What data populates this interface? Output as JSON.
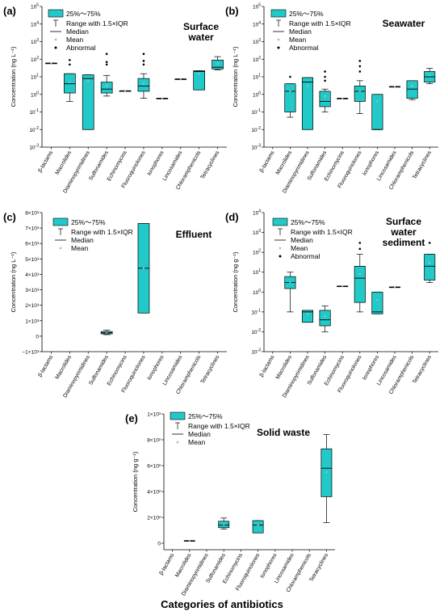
{
  "colors": {
    "box": "#00CED1",
    "box_fill": "#22C9C9",
    "stroke": "#000000",
    "mean": "#BBBBBB"
  },
  "legend": {
    "box": "25%～75%",
    "range": "Range with 1.5×IQR",
    "median": "Median",
    "mean": "Mean",
    "abnormal": "Abnormal"
  },
  "x_caption": "Categories of antibiotics",
  "chart_data": [
    {
      "id": "a",
      "label": "(a)",
      "title": [
        "Surface",
        "water"
      ],
      "type": "box",
      "scale": "log",
      "ylabel": "Concentration (ng L⁻¹)",
      "ylim_exp": [
        -3,
        5
      ],
      "show_abnormal": true,
      "categories": [
        "β-lactams",
        "Macrolides",
        "Diaminopyrimidines",
        "Sulfonamides",
        "Echinomycins",
        "Fluoroquinolones",
        "Ionophores",
        "Lincosamides",
        "Chloramphenicols",
        "Tetracyclines"
      ],
      "boxes": [
        {
          "min": 60,
          "q1": 60,
          "median": 60,
          "q3": 60,
          "max": 60,
          "mean": 60,
          "outliers": []
        },
        {
          "min": 0.4,
          "q1": 1.2,
          "median": 4,
          "q3": 15,
          "max": 15,
          "mean": 5,
          "outliers": [
            50,
            90
          ]
        },
        {
          "min": 0.01,
          "q1": 0.01,
          "median": 8,
          "q3": 13,
          "max": 13,
          "mean": 6,
          "outliers": []
        },
        {
          "min": 0.8,
          "q1": 1.2,
          "median": 2,
          "q3": 5,
          "max": 12,
          "mean": 3,
          "outliers": [
            50,
            70,
            200
          ]
        },
        {
          "min": 1.6,
          "q1": 1.6,
          "median": 1.6,
          "q3": 1.6,
          "max": 1.6,
          "mean": 1.6,
          "outliers": []
        },
        {
          "min": 0.6,
          "q1": 1.5,
          "median": 3,
          "q3": 8,
          "max": 15,
          "mean": 4,
          "outliers": [
            50,
            80,
            200
          ]
        },
        {
          "min": 0.6,
          "q1": 0.6,
          "median": 0.6,
          "q3": 0.6,
          "max": 0.6,
          "mean": 0.6,
          "outliers": []
        },
        {
          "min": 7.5,
          "q1": 7.5,
          "median": 7.5,
          "q3": 7.5,
          "max": 7.5,
          "mean": 7.5,
          "outliers": []
        },
        {
          "min": 1.8,
          "q1": 1.8,
          "median": 20,
          "q3": 22,
          "max": 22,
          "mean": 15,
          "outliers": []
        },
        {
          "min": 25,
          "q1": 28,
          "median": 35,
          "q3": 90,
          "max": 140,
          "mean": 55,
          "outliers": []
        }
      ]
    },
    {
      "id": "b",
      "label": "(b)",
      "title": [
        "Seawater"
      ],
      "type": "box",
      "scale": "log",
      "ylabel": "Concentration (ng L⁻¹)",
      "ylim_exp": [
        -3,
        5
      ],
      "show_abnormal": true,
      "categories": [
        "β-lactams",
        "Macrolides",
        "Diaminopyrimidines",
        "Sulfonamides",
        "Echinomycins",
        "Fluoroquinolones",
        "Ionophores",
        "Lincosamides",
        "Chloramphenicols",
        "Tetracyclines"
      ],
      "boxes": [
        null,
        {
          "min": 0.05,
          "q1": 0.1,
          "median": 1.5,
          "q3": 4,
          "max": 4,
          "mean": 1.5,
          "outliers": [
            10
          ]
        },
        {
          "min": 0.01,
          "q1": 0.01,
          "median": 5,
          "q3": 9,
          "max": 9,
          "mean": 3,
          "outliers": []
        },
        {
          "min": 0.1,
          "q1": 0.2,
          "median": 0.4,
          "q3": 1.5,
          "max": 2,
          "mean": 0.8,
          "outliers": [
            6,
            10,
            20
          ]
        },
        {
          "min": 0.6,
          "q1": 0.6,
          "median": 0.6,
          "q3": 0.6,
          "max": 0.6,
          "mean": 0.6,
          "outliers": []
        },
        {
          "min": 0.08,
          "q1": 0.4,
          "median": 1.5,
          "q3": 3,
          "max": 6,
          "mean": 1.5,
          "outliers": [
            20,
            40,
            80
          ]
        },
        {
          "min": 0.01,
          "q1": 0.01,
          "median": 0.01,
          "q3": 1,
          "max": 1,
          "mean": 0.4,
          "outliers": []
        },
        {
          "min": 2.8,
          "q1": 2.8,
          "median": 2.8,
          "q3": 2.8,
          "max": 2.8,
          "mean": 2.8,
          "outliers": []
        },
        {
          "min": 0.5,
          "q1": 0.6,
          "median": 2,
          "q3": 6,
          "max": 6,
          "mean": 3,
          "outliers": []
        },
        {
          "min": 4,
          "q1": 5,
          "median": 10,
          "q3": 20,
          "max": 30,
          "mean": 12,
          "outliers": []
        }
      ]
    },
    {
      "id": "c",
      "label": "(c)",
      "title": [
        "Effluent"
      ],
      "type": "box",
      "scale": "linear",
      "ylabel": "Concentration (ng L⁻¹)",
      "ylim": [
        -1000,
        8000
      ],
      "show_abnormal": false,
      "yticks": [
        {
          "v": -1000,
          "t": "−1×10³"
        },
        {
          "v": 0,
          "t": "0"
        },
        {
          "v": 1000,
          "t": "1×10³"
        },
        {
          "v": 2000,
          "t": "2×10³"
        },
        {
          "v": 3000,
          "t": "3×10³"
        },
        {
          "v": 4000,
          "t": "4×10³"
        },
        {
          "v": 5000,
          "t": "5×10³"
        },
        {
          "v": 6000,
          "t": "6×10³"
        },
        {
          "v": 7000,
          "t": "7×10³"
        },
        {
          "v": 8000,
          "t": "8×10³"
        }
      ],
      "categories": [
        "β-lactams",
        "Macrolides",
        "Diaminopyrimidines",
        "Sulfonamides",
        "Echinomycins",
        "Fluoroquinolones",
        "Ionophores",
        "Lincosamides",
        "Chloramphenicols",
        "Tetracyclines"
      ],
      "boxes": [
        null,
        null,
        null,
        {
          "min": 100,
          "q1": 150,
          "median": 220,
          "q3": 300,
          "max": 400,
          "mean": 230,
          "outliers": []
        },
        null,
        {
          "min": 1500,
          "q1": 1500,
          "median": 4400,
          "q3": 7300,
          "max": 7300,
          "mean": 4400,
          "outliers": []
        },
        null,
        null,
        null,
        null
      ]
    },
    {
      "id": "d",
      "label": "(d)",
      "title": [
        "Surface",
        "water",
        "sediment"
      ],
      "type": "box",
      "scale": "log",
      "ylabel": "Concentration (ng g⁻¹)",
      "ylim_exp": [
        -3,
        4
      ],
      "show_abnormal": true,
      "categories": [
        "β-lactams",
        "Macrolides",
        "Diaminopyrimidines",
        "Sulfonamides",
        "Echinomycins",
        "Fluoroquinolones",
        "Ionophores",
        "Lincosamides",
        "Chloramphenicols",
        "Tetracyclines"
      ],
      "boxes": [
        null,
        {
          "min": 0.1,
          "q1": 1.5,
          "median": 3,
          "q3": 6,
          "max": 10,
          "mean": 3,
          "outliers": []
        },
        {
          "min": 0.03,
          "q1": 0.03,
          "median": 0.1,
          "q3": 0.12,
          "max": 0.12,
          "mean": 0.08,
          "outliers": []
        },
        {
          "min": 0.01,
          "q1": 0.02,
          "median": 0.04,
          "q3": 0.12,
          "max": 0.2,
          "mean": 0.06,
          "outliers": []
        },
        {
          "min": 2,
          "q1": 2,
          "median": 2,
          "q3": 2,
          "max": 2,
          "mean": 2,
          "outliers": []
        },
        {
          "min": 0.1,
          "q1": 0.3,
          "median": 5,
          "q3": 20,
          "max": 80,
          "mean": 8,
          "outliers": [
            150,
            300
          ]
        },
        {
          "min": 0.08,
          "q1": 0.08,
          "median": 0.1,
          "q3": 1,
          "max": 1,
          "mean": 0.4,
          "outliers": []
        },
        {
          "min": 1.8,
          "q1": 1.8,
          "median": 1.8,
          "q3": 1.8,
          "max": 1.8,
          "mean": 1.8,
          "outliers": []
        },
        null,
        {
          "min": 3,
          "q1": 4,
          "median": 20,
          "q3": 80,
          "max": 80,
          "mean": 30,
          "outliers": [
            300
          ]
        }
      ]
    },
    {
      "id": "e",
      "label": "(e)",
      "title": [
        "Solid waste"
      ],
      "type": "box",
      "scale": "linear",
      "ylabel": "Concentration (ng g⁻¹)",
      "ylim": [
        -50,
        1000
      ],
      "show_abnormal": false,
      "yticks": [
        {
          "v": 0,
          "t": "0"
        },
        {
          "v": 200,
          "t": "2×10²"
        },
        {
          "v": 400,
          "t": "4×10²"
        },
        {
          "v": 600,
          "t": "6×10²"
        },
        {
          "v": 800,
          "t": "8×10²"
        },
        {
          "v": 1000,
          "t": "1×10³"
        }
      ],
      "categories": [
        "β-lactams",
        "Macrolides",
        "Diaminopyrimidines",
        "Sulfonamides",
        "Echinomycins",
        "Fluoroquinolones",
        "Ionophores",
        "Lincosamides",
        "Chloramphenicols",
        "Tetracyclines"
      ],
      "boxes": [
        null,
        {
          "min": 20,
          "q1": 20,
          "median": 20,
          "q3": 20,
          "max": 20,
          "mean": 20,
          "outliers": []
        },
        null,
        {
          "min": 110,
          "q1": 120,
          "median": 140,
          "q3": 170,
          "max": 195,
          "mean": 145,
          "outliers": []
        },
        null,
        {
          "min": 80,
          "q1": 80,
          "median": 140,
          "q3": 175,
          "max": 175,
          "mean": 140,
          "outliers": []
        },
        null,
        null,
        null,
        {
          "min": 160,
          "q1": 360,
          "median": 580,
          "q3": 730,
          "max": 840,
          "mean": 550,
          "outliers": []
        }
      ]
    }
  ]
}
